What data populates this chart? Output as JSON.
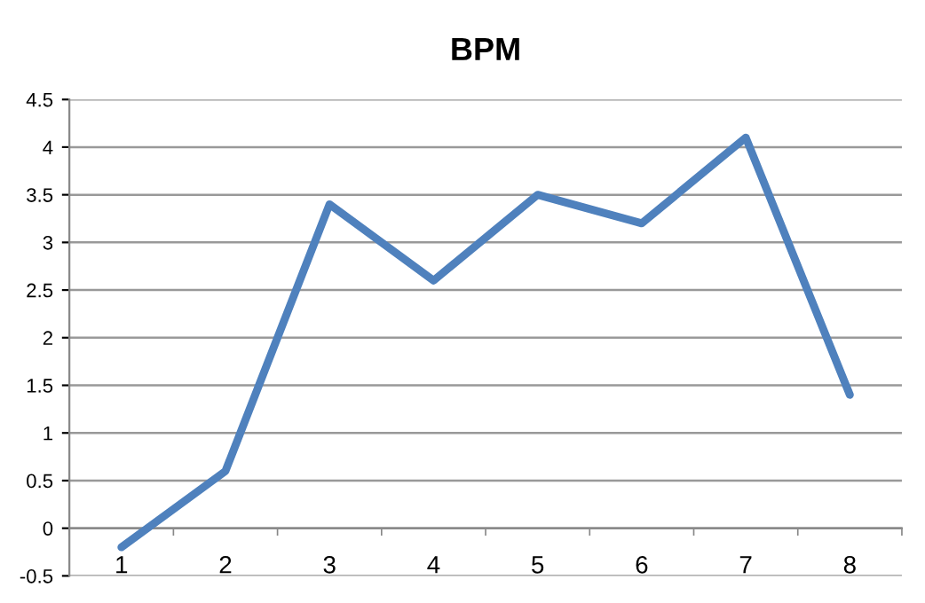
{
  "chart_data": {
    "type": "line",
    "title": "BPM",
    "categories": [
      "1",
      "2",
      "3",
      "4",
      "5",
      "6",
      "7",
      "8"
    ],
    "series": [
      {
        "color": "#4f81bd",
        "values": [
          -0.2,
          0.6,
          3.4,
          2.6,
          3.5,
          3.2,
          4.1,
          1.4
        ]
      }
    ],
    "ylim": [
      -0.5,
      4.5
    ],
    "yticks": [
      -0.5,
      0,
      0.5,
      1,
      1.5,
      2,
      2.5,
      3,
      3.5,
      4,
      4.5
    ],
    "grid": "y",
    "legend": false,
    "marker": "none",
    "line_style": "solid"
  }
}
